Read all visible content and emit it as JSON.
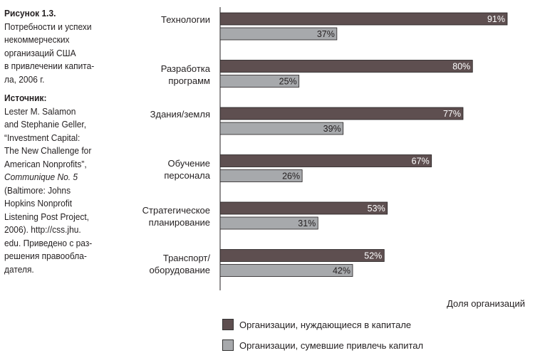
{
  "sidebar": {
    "figure_title": "Рисунок 1.3.",
    "caption_lines": [
      "Потребности и успехи",
      "некоммерческих",
      "организаций США",
      "в привлечении капита-",
      "ла, 2006 г."
    ],
    "source_heading": "Источник:",
    "source_lines_a": [
      "Lester M. Salamon",
      "and Stephanie Geller,",
      "“Investment Capital:",
      "The New Challenge for",
      "American Nonprofits”,"
    ],
    "source_italic": "Communique No. 5",
    "source_lines_b": [
      "(Baltimore: Johns",
      "Hopkins Nonprofit",
      "Listening Post Project,",
      "2006). http://css.jhu.",
      "edu. Приведено с раз-",
      "решения правооблa-",
      "дателя."
    ]
  },
  "chart_data": {
    "type": "bar",
    "orientation": "horizontal",
    "categories": [
      "Технологии",
      "Разработка\nпрограмм",
      "Здания/земля",
      "Обучение\nперсонала",
      "Стратегическое\nпланирование",
      "Транспорт/\nоборудование"
    ],
    "series": [
      {
        "name": "Организации, нуждающиеся в капитале",
        "color": "#5e4f50",
        "values": [
          91,
          80,
          77,
          67,
          53,
          52
        ],
        "labels": [
          "91%",
          "80%",
          "77%",
          "67%",
          "53%",
          "52%"
        ]
      },
      {
        "name": "Организации, сумевшие привлечь капитал",
        "color": "#a7a9ac",
        "values": [
          37,
          25,
          39,
          26,
          31,
          42
        ],
        "labels": [
          "37%",
          "25%",
          "39%",
          "26%",
          "31%",
          "42%"
        ]
      }
    ],
    "xlabel": "Доля организаций",
    "xlim": [
      0,
      100
    ],
    "legend_position": "bottom"
  }
}
